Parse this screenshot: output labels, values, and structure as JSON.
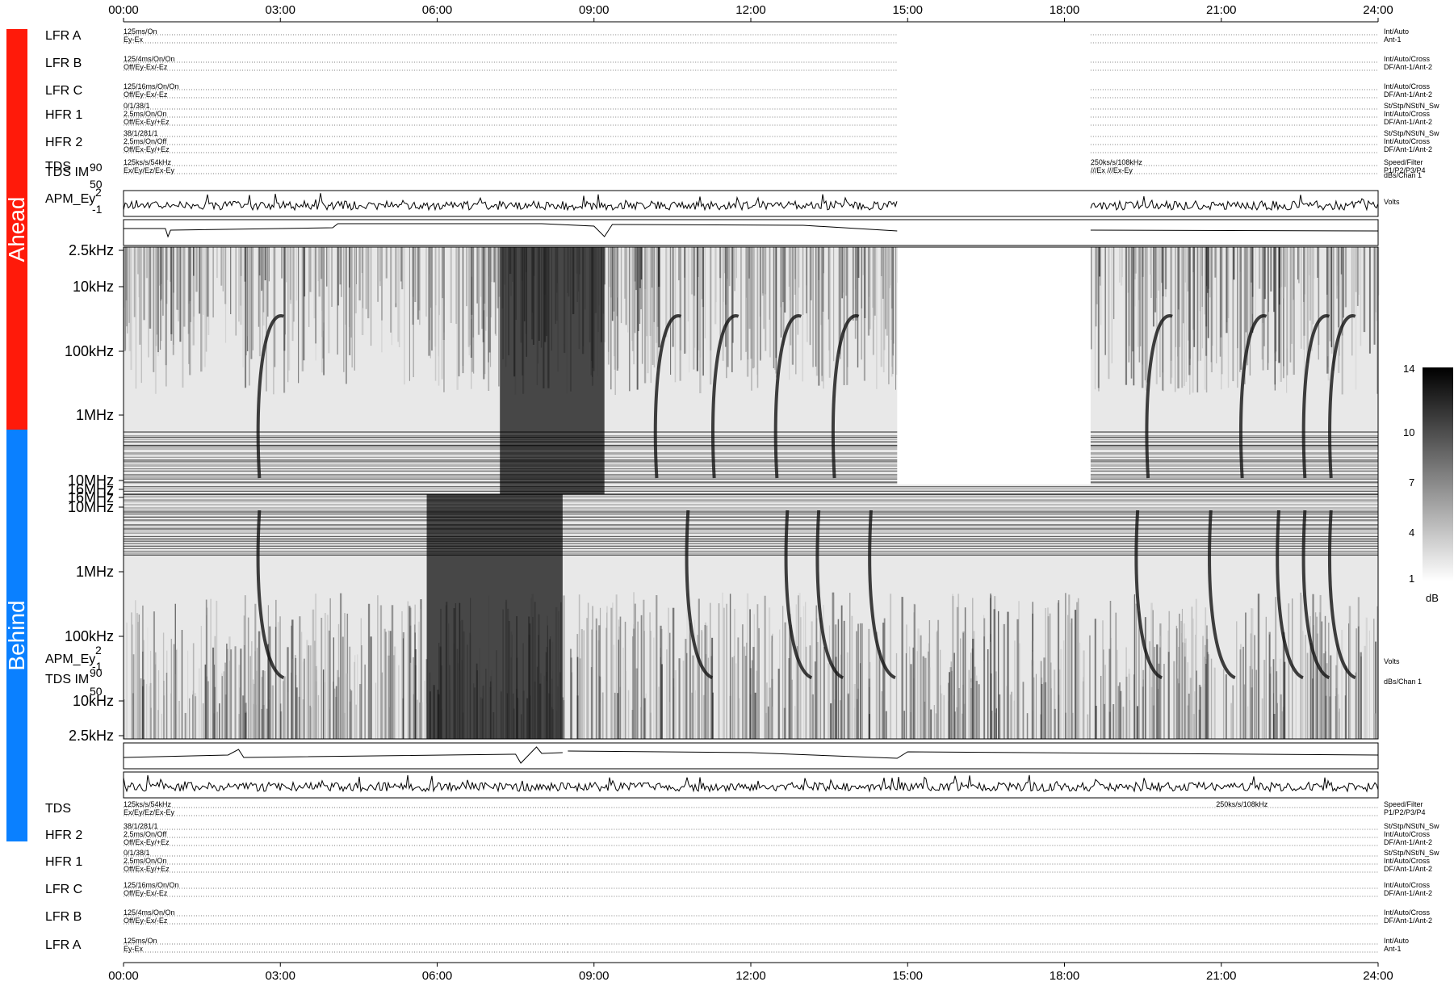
{
  "sidebar": {
    "ahead_label": "Ahead",
    "behind_label": "Behind",
    "ahead_color": "#ff1a0a",
    "behind_color": "#0a80ff"
  },
  "time_axis": [
    "00:00",
    "03:00",
    "06:00",
    "09:00",
    "12:00",
    "15:00",
    "18:00",
    "21:00",
    "24:00"
  ],
  "ahead_rows": [
    {
      "label": "LFR A",
      "l1": "125ms/On",
      "l2": "Ey-Ex",
      "r1": "Int/Auto",
      "r2": "Ant-1"
    },
    {
      "label": "LFR B",
      "l1": "125/4ms/On/On",
      "l2": "Off/Ey-Ex/-Ez",
      "r1": "Int/Auto/Cross",
      "r2": "DF/Ant-1/Ant-2"
    },
    {
      "label": "LFR C",
      "l1": "125/16ms/On/On",
      "l2": "Off/Ey-Ex/-Ez",
      "r1": "Int/Auto/Cross",
      "r2": "DF/Ant-1/Ant-2"
    },
    {
      "label": "HFR 1",
      "l1": "0/1/38/1",
      "l2": "2.5ms/On/On",
      "l3": "Off/Ex-Ey/+Ez",
      "r1": "St/Stp/NSt/N_Sw",
      "r2": "Int/Auto/Cross",
      "r3": "DF/Ant-1/Ant-2"
    },
    {
      "label": "HFR 2",
      "l1": "38/1/281/1",
      "l2": "2.5ms/On/Off",
      "l3": "Off/Ex-Ey/+Ez",
      "r1": "St/Stp/NSt/N_Sw",
      "r2": "Int/Auto/Cross",
      "r3": "DF/Ant-1/Ant-2"
    },
    {
      "label": "TDS",
      "l1": "125ks/s/54kHz",
      "l2": "Ex/Ey/Ez/Ex-Ey",
      "m1": "250ks/s/108kHz",
      "m2": "///Ex      ///Ex-Ey",
      "r1": "Speed/Filter",
      "r2": "P1/P2/P3/P4"
    }
  ],
  "behind_rows": [
    {
      "label": "TDS",
      "l1": "125ks/s/54kHz",
      "l2": "Ex/Ey/Ez/Ex-Ey",
      "m1": "250ks/s/108kHz",
      "r1": "Speed/Filter",
      "r2": "P1/P2/P3/P4"
    },
    {
      "label": "HFR 2",
      "l1": "38/1/281/1",
      "l2": "2.5ms/On/Off",
      "l3": "Off/Ex-Ey/+Ez",
      "r1": "St/Stp/NSt/N_Sw",
      "r2": "Int/Auto/Cross",
      "r3": "DF/Ant-1/Ant-2"
    },
    {
      "label": "HFR 1",
      "l1": "0/1/38/1",
      "l2": "2.5ms/On/On",
      "l3": "Off/Ex-Ey/+Ez",
      "r1": "St/Stp/NSt/N_Sw",
      "r2": "Int/Auto/Cross",
      "r3": "DF/Ant-1/Ant-2"
    },
    {
      "label": "LFR C",
      "l1": "125/16ms/On/On",
      "l2": "Off/Ey-Ex/-Ez",
      "r1": "Int/Auto/Cross",
      "r2": "DF/Ant-1/Ant-2"
    },
    {
      "label": "LFR B",
      "l1": "125/4ms/On/On",
      "l2": "Off/Ey-Ex/-Ez",
      "r1": "Int/Auto/Cross",
      "r2": "DF/Ant-1/Ant-2"
    },
    {
      "label": "LFR A",
      "l1": "125ms/On",
      "l2": "Ey-Ex",
      "r1": "Int/Auto",
      "r2": "Ant-1"
    }
  ],
  "panels": {
    "ahead_tds_im": {
      "label": "TDS IM",
      "ymax": "90",
      "ymin": "50",
      "unit": "dBs/Chan 1"
    },
    "ahead_apm": {
      "label": "APM_Ey",
      "ymax": "2",
      "ymin": "-1",
      "unit": "Volts"
    },
    "behind_apm": {
      "label": "APM_Ey",
      "ymax": "2",
      "ymin": "-1",
      "unit": "Volts"
    },
    "behind_tds_im": {
      "label": "TDS IM",
      "ymax": "90",
      "ymin": "50",
      "unit": "dBs/Chan 1"
    }
  },
  "spectrogram": {
    "ahead_freq_ticks": [
      "2.5kHz",
      "10kHz",
      "100kHz",
      "1MHz",
      "10MHz",
      "16MHz"
    ],
    "behind_freq_ticks": [
      "16MHz",
      "10MHz",
      "1MHz",
      "100kHz",
      "10kHz",
      "2.5kHz"
    ],
    "ahead_gap_hours": [
      14.8,
      18.5
    ],
    "behind_gap_hours": [],
    "colorbar": {
      "ticks": [
        "14",
        "10",
        "7",
        "4",
        "1"
      ],
      "unit": "dB"
    }
  },
  "chart_data": {
    "type": "heatmap",
    "title": "",
    "xlabel": "",
    "ylabel": "",
    "x_ticks": [
      "00:00",
      "03:00",
      "06:00",
      "09:00",
      "12:00",
      "15:00",
      "18:00",
      "21:00",
      "24:00"
    ],
    "x_range_hours": [
      0,
      24
    ],
    "y_scale": "log",
    "y_range_hz": [
      2500,
      16000000
    ],
    "color_scale": "grayscale",
    "color_range_db": [
      1,
      14
    ],
    "panels": [
      "Ahead",
      "Behind"
    ]
  }
}
